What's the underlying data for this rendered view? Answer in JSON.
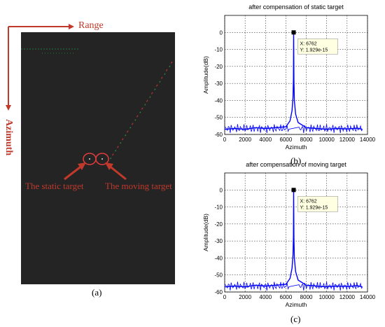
{
  "panel_a": {
    "range_label": "Range",
    "azimuth_label": "Azimuth",
    "static_label": "The static target",
    "moving_label": "The moving target",
    "caption": "(a)",
    "background_color": "#242424",
    "accent_color": "#c0392b"
  },
  "chart_data": [
    {
      "type": "line",
      "title": "after compensation of static target",
      "xlabel": "Azimuth",
      "ylabel": "Amplitude(dB)",
      "xlim": [
        0,
        14000
      ],
      "ylim": [
        -60,
        10
      ],
      "xticks": [
        0,
        2000,
        4000,
        6000,
        8000,
        10000,
        12000,
        14000
      ],
      "yticks": [
        0,
        -10,
        -20,
        -30,
        -40,
        -50,
        -60
      ],
      "grid": true,
      "line_color": "#0000ff",
      "series": [
        {
          "x": [
            0,
            1000,
            2000,
            3000,
            4000,
            5000,
            6000,
            6400,
            6600,
            6700,
            6740,
            6762,
            6785,
            6830,
            6950,
            7200,
            8000,
            9000,
            10000,
            11000,
            12000,
            13000,
            13500
          ],
          "y": [
            -57,
            -56.5,
            -57,
            -56,
            -56.5,
            -56,
            -55.5,
            -52,
            -46,
            -38,
            -27,
            0,
            -28,
            -40,
            -48,
            -53,
            -56,
            -56.5,
            -57,
            -56.5,
            -56.8,
            -56.3,
            -57
          ]
        }
      ],
      "datatip": {
        "x": 6762,
        "y": 0,
        "line1": "X: 6762",
        "line2": "Y: 1.929e-15"
      },
      "caption": "(b)"
    },
    {
      "type": "line",
      "title": "after compensation of moving target",
      "xlabel": "Azimuth",
      "ylabel": "Amplitude(dB)",
      "xlim": [
        0,
        14000
      ],
      "ylim": [
        -60,
        10
      ],
      "xticks": [
        0,
        2000,
        4000,
        6000,
        8000,
        10000,
        12000,
        14000
      ],
      "yticks": [
        0,
        -10,
        -20,
        -30,
        -40,
        -50,
        -60
      ],
      "grid": true,
      "line_color": "#0000ff",
      "series": [
        {
          "x": [
            0,
            1000,
            2000,
            3000,
            4000,
            5000,
            6000,
            6400,
            6600,
            6700,
            6740,
            6762,
            6785,
            6830,
            6950,
            7200,
            8000,
            9000,
            10000,
            11000,
            12000,
            13000,
            13500
          ],
          "y": [
            -57,
            -56.5,
            -57,
            -56,
            -56.5,
            -56,
            -55.5,
            -52,
            -46,
            -38,
            -27,
            0,
            -28,
            -40,
            -48,
            -53,
            -56,
            -56.5,
            -57,
            -56.5,
            -56.8,
            -56.3,
            -57
          ]
        }
      ],
      "datatip": {
        "x": 6762,
        "y": 0,
        "line1": "X: 6762",
        "line2": "Y: 1.929e-15"
      },
      "caption": "(c)"
    }
  ]
}
